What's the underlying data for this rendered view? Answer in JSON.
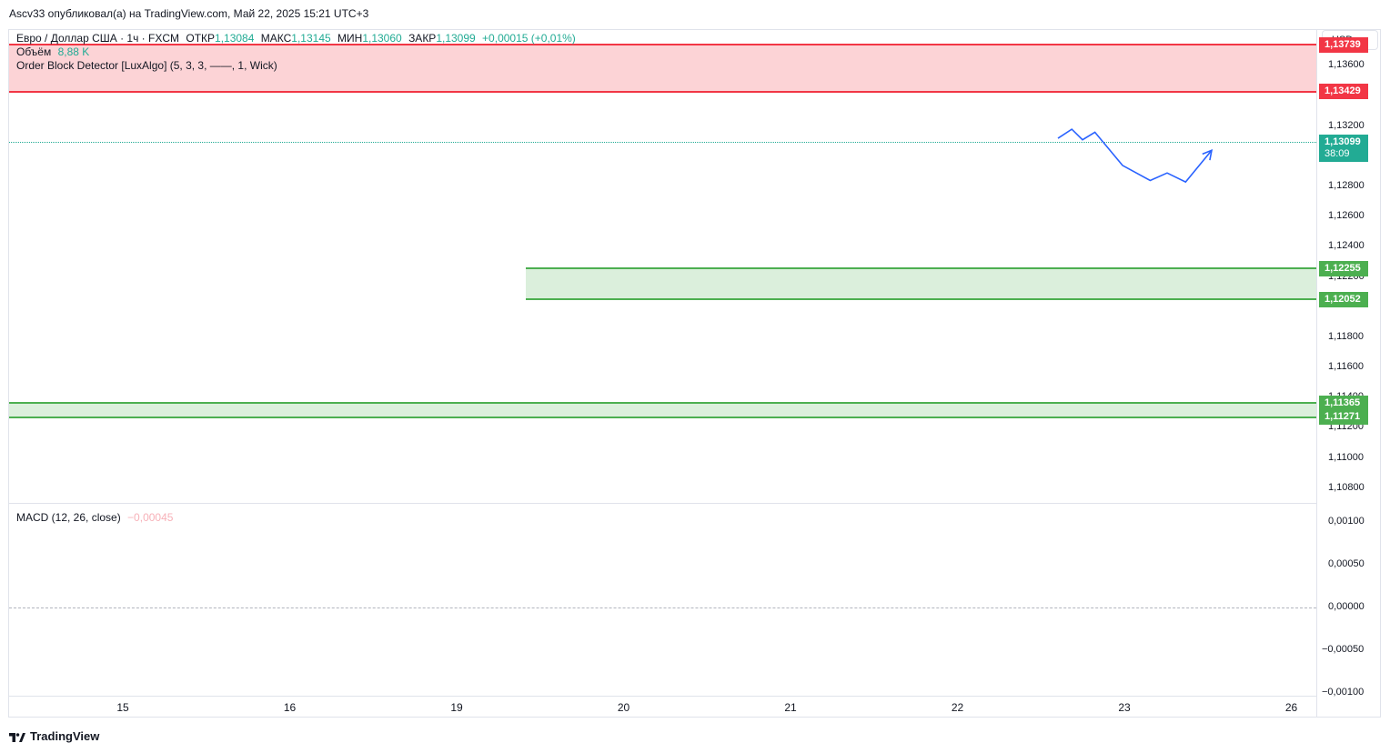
{
  "publisher_line": "Ascv33 опубликовал(а) на TradingView.com, Май 22, 2025 15:21 UTC+3",
  "legend": {
    "symbol": "Евро / Доллар США · 1ч · FXCM",
    "open_label": "ОТКР",
    "open": "1,13084",
    "high_label": "МАКС",
    "high": "1,13145",
    "low_label": "МИН",
    "low": "1,13060",
    "close_label": "ЗАКР",
    "close": "1,13099",
    "change": "+0,00015 (+0,01%)",
    "volume_label": "Объём",
    "volume": "8,88 K",
    "indicator": "Order Block Detector [LuxAlgo] (5, 3, 3, ——, 1, Wick)",
    "macd_label": "MACD (12, 26, close)",
    "macd_value": "−0,00045"
  },
  "currency_button": "USD",
  "footer_brand": "TradingView",
  "colors": {
    "bull": "#26a69a",
    "bear": "#ef5350",
    "supply_zone": "#f23645",
    "demand_zone": "#4caf50",
    "projection": "#2962ff",
    "price_tag": "#22ab94"
  },
  "chart_data": [
    {
      "type": "candlestick",
      "symbol": "EUR/USD",
      "timeframe": "1h",
      "y_axis": {
        "ticks": [
          "1,13600",
          "1,13200",
          "1,12800",
          "1,12600",
          "1,12400",
          "1,12200",
          "1,11800",
          "1,11600",
          "1,11400",
          "1,11200",
          "1,11000",
          "1,10800"
        ],
        "range": [
          1.1072,
          1.1382
        ]
      },
      "x_axis": {
        "ticks": [
          "15",
          "16",
          "19",
          "20",
          "21",
          "22",
          "23",
          "26"
        ]
      },
      "price_levels": [
        {
          "name": "supply-zone-top",
          "value": 1.13739,
          "label": "1,13739",
          "color": "#f23645"
        },
        {
          "name": "supply-zone-bottom",
          "value": 1.13429,
          "label": "1,13429",
          "color": "#f23645"
        },
        {
          "name": "last-price",
          "value": 1.13099,
          "label": "1,13099",
          "sublabel": "38:09",
          "color": "#22ab94"
        },
        {
          "name": "demand-zone-top",
          "value": 1.12255,
          "label": "1,12255",
          "color": "#4caf50"
        },
        {
          "name": "demand-zone-bottom",
          "value": 1.12052,
          "label": "1,12052",
          "color": "#4caf50"
        },
        {
          "name": "lower-zone-top",
          "value": 1.11365,
          "label": "1,11365",
          "color": "#4caf50"
        },
        {
          "name": "lower-zone-bottom",
          "value": 1.11271,
          "label": "1,11271",
          "color": "#4caf50"
        }
      ],
      "projection_path": [
        {
          "x": 0.0,
          "y": 1.1312
        },
        {
          "x": 0.09,
          "y": 1.1318
        },
        {
          "x": 0.16,
          "y": 1.1311
        },
        {
          "x": 0.24,
          "y": 1.1316
        },
        {
          "x": 0.42,
          "y": 1.1294
        },
        {
          "x": 0.6,
          "y": 1.1284
        },
        {
          "x": 0.71,
          "y": 1.1289
        },
        {
          "x": 0.83,
          "y": 1.1283
        },
        {
          "x": 1.0,
          "y": 1.1304
        }
      ]
    },
    {
      "type": "histogram",
      "name": "MACD (12, 26, close)",
      "y_axis": {
        "ticks": [
          "0,00100",
          "0,00050",
          "0,00000",
          "−0,00050",
          "−0,00100"
        ],
        "range": [
          -0.00102,
          0.00115
        ]
      }
    }
  ]
}
